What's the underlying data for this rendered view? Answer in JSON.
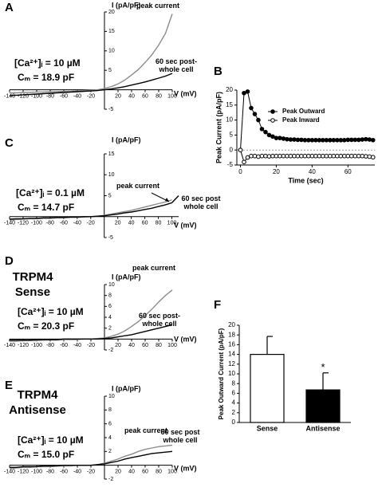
{
  "chart_data": [
    {
      "type": "iv",
      "panel": "A",
      "ylabel": "I (pA/pF)",
      "xlabel": "V (mV)",
      "annotations": [
        "[Ca²⁺]ᵢ = 10 µM",
        "Cₘ = 18.9 pF"
      ],
      "x": [
        -140,
        -130,
        -120,
        -110,
        -100,
        -90,
        -80,
        -70,
        -60,
        -50,
        -40,
        -30,
        -20,
        -10,
        0,
        10,
        20,
        30,
        40,
        50,
        60,
        70,
        80,
        90,
        100
      ],
      "series": [
        {
          "name": "peak current",
          "color": "#8c8c8c",
          "values": [
            -0.8,
            -0.8,
            -0.7,
            -0.7,
            -0.6,
            -0.6,
            -0.5,
            -0.5,
            -0.4,
            -0.4,
            -0.3,
            -0.2,
            -0.1,
            0,
            0.3,
            0.8,
            1.5,
            2.5,
            3.8,
            5.2,
            7,
            9,
            11.5,
            14.5,
            19.5
          ]
        },
        {
          "name": "60 sec post-whole cell",
          "color": "#000000",
          "values": [
            -1.5,
            -1.4,
            -1.3,
            -1.2,
            -1.1,
            -1,
            -0.9,
            -0.8,
            -0.7,
            -0.6,
            -0.5,
            -0.4,
            -0.3,
            -0.2,
            0,
            0.2,
            0.5,
            0.8,
            1.2,
            1.6,
            2,
            2.5,
            3,
            3.5,
            4.2
          ]
        }
      ],
      "xlim": [
        -140,
        100
      ],
      "ylim": [
        -5,
        20
      ],
      "xticks": [
        -140,
        -120,
        -100,
        -80,
        -60,
        -40,
        -20,
        20,
        40,
        60,
        80,
        100
      ],
      "yticks": [
        -5,
        5,
        10,
        15,
        20
      ]
    },
    {
      "type": "line",
      "panel": "B",
      "ylabel": "Peak Current (pA/pF)",
      "xlabel": "Time (sec)",
      "legend": "upper right",
      "x": [
        0,
        2,
        4,
        6,
        8,
        10,
        12,
        14,
        16,
        18,
        20,
        22,
        24,
        26,
        28,
        30,
        32,
        34,
        36,
        38,
        40,
        42,
        44,
        46,
        48,
        50,
        52,
        54,
        56,
        58,
        60,
        62,
        64,
        66,
        68,
        70,
        72,
        74
      ],
      "series": [
        {
          "name": "Peak Outward",
          "color": "#000000",
          "marker": "filled",
          "values": [
            0,
            19,
            19.5,
            14,
            12,
            10,
            7,
            6,
            5,
            4.5,
            4,
            4,
            3.8,
            3.6,
            3.5,
            3.5,
            3.4,
            3.4,
            3.3,
            3.3,
            3.3,
            3.3,
            3.3,
            3.3,
            3.3,
            3.3,
            3.3,
            3.3,
            3.3,
            3.3,
            3.4,
            3.4,
            3.4,
            3.4,
            3.5,
            3.6,
            3.5,
            3.3
          ]
        },
        {
          "name": "Peak Inward",
          "color": "#000000",
          "marker": "open",
          "values": [
            0,
            -4,
            -2.5,
            -2,
            -2,
            -2.2,
            -2,
            -2,
            -2.1,
            -2,
            -2,
            -2,
            -2,
            -2,
            -2,
            -2,
            -2,
            -2,
            -2,
            -2,
            -2,
            -2,
            -2,
            -2,
            -2,
            -2,
            -2,
            -2,
            -2,
            -2,
            -2,
            -2,
            -2,
            -2,
            -2,
            -2.1,
            -2.2,
            -2.4
          ]
        }
      ],
      "xlim": [
        -2,
        75
      ],
      "ylim": [
        -5,
        20
      ],
      "xticks": [
        0,
        20,
        40,
        60
      ],
      "yticks": [
        -5,
        0,
        5,
        10,
        15,
        20
      ]
    },
    {
      "type": "iv",
      "panel": "C",
      "ylabel": "I (pA/pF)",
      "xlabel": "V (mV)",
      "annotations": [
        "[Ca²⁺]ᵢ = 0.1 µM",
        "Cₘ = 14.7 pF"
      ],
      "x": [
        -140,
        -130,
        -120,
        -110,
        -100,
        -90,
        -80,
        -70,
        -60,
        -50,
        -40,
        -30,
        -20,
        -10,
        0,
        10,
        20,
        30,
        40,
        50,
        60,
        70,
        80,
        90,
        100,
        110
      ],
      "series": [
        {
          "name": "peak current",
          "color": "#8c8c8c",
          "values": [
            -0.8,
            -0.7,
            -0.6,
            -0.5,
            -0.5,
            -0.4,
            -0.4,
            -0.3,
            -0.3,
            -0.2,
            -0.2,
            -0.1,
            0,
            0.1,
            0.3,
            0.6,
            0.9,
            1.2,
            1.5,
            1.9,
            2.3,
            2.7,
            3.1,
            3.5,
            4,
            null
          ]
        },
        {
          "name": "60 sec post whole cell",
          "color": "#000000",
          "values": [
            -0.6,
            -0.5,
            -0.5,
            -0.4,
            -0.4,
            -0.3,
            -0.3,
            -0.2,
            -0.2,
            -0.1,
            -0.1,
            0,
            0,
            0.1,
            0.2,
            0.4,
            0.6,
            0.9,
            1.1,
            1.4,
            1.7,
            2,
            2.4,
            2.8,
            3.3,
            5
          ]
        }
      ],
      "xlim": [
        -140,
        110
      ],
      "ylim": [
        -5,
        15
      ],
      "xticks": [
        -140,
        -120,
        -100,
        -80,
        -60,
        -40,
        -20,
        20,
        40,
        60,
        80,
        100
      ],
      "yticks": [
        -5,
        5,
        10,
        15
      ]
    },
    {
      "type": "iv",
      "panel": "D",
      "title": "TRPM4 Sense",
      "ylabel": "I (pA/pF)",
      "xlabel": "V (mV)",
      "annotations": [
        "[Ca²⁺]ᵢ = 10 µM",
        "Cₘ = 20.3 pF"
      ],
      "x": [
        -140,
        -130,
        -120,
        -110,
        -100,
        -90,
        -80,
        -70,
        -60,
        -50,
        -40,
        -30,
        -20,
        -10,
        0,
        10,
        20,
        30,
        40,
        50,
        60,
        70,
        80,
        90,
        100
      ],
      "series": [
        {
          "name": "peak current",
          "color": "#8c8c8c",
          "values": [
            -0.4,
            -0.4,
            -0.3,
            -0.3,
            -0.3,
            -0.2,
            -0.2,
            -0.2,
            -0.1,
            -0.1,
            -0.1,
            0,
            0,
            0.1,
            0.2,
            0.5,
            0.9,
            1.5,
            2.3,
            3.2,
            4.3,
            5.5,
            6.8,
            8,
            9
          ]
        },
        {
          "name": "60 sec post-whole cell",
          "color": "#000000",
          "values": [
            -0.2,
            -0.2,
            -0.2,
            -0.2,
            -0.1,
            -0.1,
            -0.1,
            -0.1,
            0,
            0,
            0,
            0,
            0,
            0,
            0.1,
            0.2,
            0.4,
            0.6,
            0.8,
            1.1,
            1.4,
            1.7,
            2,
            2.3,
            2.6
          ]
        }
      ],
      "xlim": [
        -140,
        100
      ],
      "ylim": [
        -2,
        10
      ],
      "xticks": [
        -140,
        -120,
        -100,
        -80,
        -60,
        -40,
        -20,
        20,
        40,
        60,
        80,
        100
      ],
      "yticks": [
        -2,
        2,
        4,
        6,
        8,
        10
      ]
    },
    {
      "type": "iv",
      "panel": "E",
      "title": "TRPM4 Antisense",
      "ylabel": "I (pA/pF)",
      "xlabel": "V (mV)",
      "annotations": [
        "[Ca²⁺]ᵢ = 10 µM",
        "Cₘ = 15.0 pF"
      ],
      "x": [
        -140,
        -130,
        -120,
        -110,
        -100,
        -90,
        -80,
        -70,
        -60,
        -50,
        -40,
        -30,
        -20,
        -10,
        0,
        10,
        20,
        30,
        40,
        50,
        60,
        70,
        80,
        90,
        100
      ],
      "series": [
        {
          "name": "peak current",
          "color": "#8c8c8c",
          "values": [
            -0.5,
            -0.4,
            -0.3,
            -0.3,
            -0.2,
            -0.2,
            -0.2,
            -0.1,
            -0.1,
            -0.1,
            0,
            0,
            0,
            0.1,
            0.3,
            0.6,
            0.9,
            1.3,
            1.6,
            2,
            2.3,
            2.5,
            2.7,
            2.8,
            2.9
          ]
        },
        {
          "name": "60 sec post whole cell",
          "color": "#000000",
          "values": [
            -0.3,
            -0.3,
            -0.2,
            -0.2,
            -0.2,
            -0.1,
            -0.1,
            -0.1,
            0,
            0,
            0,
            0,
            0,
            0.1,
            0.2,
            0.4,
            0.6,
            0.9,
            1.1,
            1.3,
            1.5,
            1.7,
            1.8,
            1.9,
            2
          ]
        }
      ],
      "xlim": [
        -140,
        100
      ],
      "ylim": [
        -2,
        10
      ],
      "xticks": [
        -140,
        -120,
        -100,
        -80,
        -60,
        -40,
        -20,
        20,
        40,
        60,
        80,
        100
      ],
      "yticks": [
        -2,
        2,
        4,
        6,
        8,
        10
      ]
    },
    {
      "type": "bar",
      "panel": "F",
      "ylabel": "Peak Outward Current (pA/pF)",
      "categories": [
        "Sense",
        "Antisense"
      ],
      "values": [
        14,
        6.7
      ],
      "errors": [
        3.7,
        3.5
      ],
      "colors": [
        "#ffffff",
        "#000000"
      ],
      "annotations": [
        {
          "text": "*",
          "at": "Antisense"
        }
      ],
      "ylim": [
        0,
        20
      ],
      "yticks": [
        0,
        2,
        4,
        6,
        8,
        10,
        12,
        14,
        16,
        18,
        20
      ]
    }
  ]
}
